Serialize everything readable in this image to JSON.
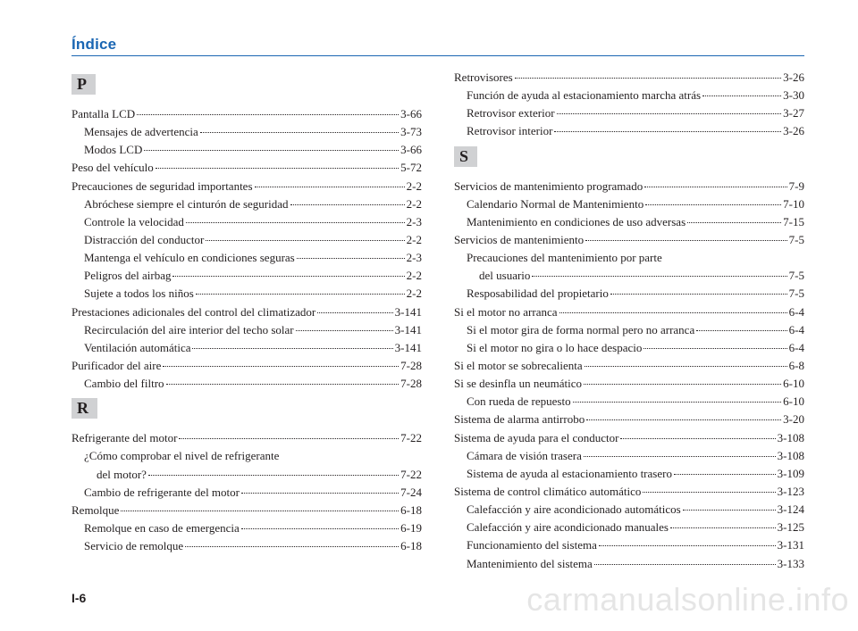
{
  "header": {
    "title": "Índice"
  },
  "pageNumber": "I-6",
  "watermark": "carmanualsonline.info",
  "leftColumn": {
    "sections": [
      {
        "letter": "P",
        "entries": [
          {
            "label": "Pantalla LCD",
            "page": "3-66",
            "indent": 0
          },
          {
            "label": "Mensajes de advertencia",
            "page": "3-73",
            "indent": 1
          },
          {
            "label": "Modos LCD",
            "page": "3-66",
            "indent": 1
          },
          {
            "label": "Peso del vehículo",
            "page": "5-72",
            "indent": 0
          },
          {
            "label": "Precauciones de seguridad importantes",
            "page": "2-2",
            "indent": 0
          },
          {
            "label": "Abróchese siempre el cinturón de seguridad",
            "page": "2-2",
            "indent": 1
          },
          {
            "label": "Controle la velocidad",
            "page": "2-3",
            "indent": 1
          },
          {
            "label": "Distracción del conductor",
            "page": "2-2",
            "indent": 1
          },
          {
            "label": "Mantenga el vehículo en condiciones seguras",
            "page": "2-3",
            "indent": 1
          },
          {
            "label": "Peligros del airbag",
            "page": "2-2",
            "indent": 1
          },
          {
            "label": "Sujete a todos los niños",
            "page": "2-2",
            "indent": 1
          },
          {
            "label": "Prestaciones adicionales del control del climatizador",
            "page": "3-141",
            "indent": 0,
            "wrap": true
          },
          {
            "label": "Recirculación del aire interior del techo solar",
            "page": "3-141",
            "indent": 1
          },
          {
            "label": "Ventilación automática",
            "page": "3-141",
            "indent": 1
          },
          {
            "label": "Purificador del aire",
            "page": "7-28",
            "indent": 0
          },
          {
            "label": "Cambio del filtro",
            "page": "7-28",
            "indent": 1
          }
        ]
      },
      {
        "letter": "R",
        "entries": [
          {
            "label": "Refrigerante del motor",
            "page": "7-22",
            "indent": 0
          },
          {
            "label_multiline": [
              "¿Cómo comprobar el nivel de refrigerante",
              "del motor?"
            ],
            "page": "7-22",
            "indent": 1
          },
          {
            "label": "Cambio de refrigerante del motor",
            "page": "7-24",
            "indent": 1
          },
          {
            "label": "Remolque",
            "page": "6-18",
            "indent": 0
          },
          {
            "label": "Remolque en caso de emergencia",
            "page": "6-19",
            "indent": 1
          },
          {
            "label": "Servicio de remolque",
            "page": "6-18",
            "indent": 1
          }
        ]
      }
    ]
  },
  "rightColumn": {
    "sections": [
      {
        "letter": null,
        "entries": [
          {
            "label": "Retrovisores",
            "page": "3-26",
            "indent": 0
          },
          {
            "label": "Función de ayuda al estacionamiento marcha atrás",
            "page": "3-30",
            "indent": 1
          },
          {
            "label": "Retrovisor exterior",
            "page": "3-27",
            "indent": 1
          },
          {
            "label": "Retrovisor interior",
            "page": "3-26",
            "indent": 1
          }
        ]
      },
      {
        "letter": "S",
        "entries": [
          {
            "label": "Servicios de mantenimiento programado",
            "page": "7-9",
            "indent": 0
          },
          {
            "label": "Calendario Normal de Mantenimiento",
            "page": "7-10",
            "indent": 1
          },
          {
            "label": "Mantenimiento en condiciones de uso adversas",
            "page": "7-15",
            "indent": 1
          },
          {
            "label": "Servicios de mantenimiento",
            "page": "7-5",
            "indent": 0
          },
          {
            "label_multiline": [
              "Precauciones del mantenimiento por parte",
              "del usuario"
            ],
            "page": "7-5",
            "indent": 1
          },
          {
            "label": "Resposabilidad del propietario",
            "page": "7-5",
            "indent": 1
          },
          {
            "label": "Si el motor no arranca",
            "page": "6-4",
            "indent": 0
          },
          {
            "label": "Si el motor gira de forma normal pero no arranca",
            "page": "6-4",
            "indent": 1
          },
          {
            "label": "Si el motor no gira o lo hace despacio",
            "page": "6-4",
            "indent": 1
          },
          {
            "label": "Si el motor se sobrecalienta",
            "page": "6-8",
            "indent": 0
          },
          {
            "label": "Si se desinfla un neumático",
            "page": "6-10",
            "indent": 0
          },
          {
            "label": "Con rueda de repuesto",
            "page": "6-10",
            "indent": 1
          },
          {
            "label": "Sistema de alarma antirrobo",
            "page": "3-20",
            "indent": 0
          },
          {
            "label": "Sistema de ayuda para el conductor",
            "page": "3-108",
            "indent": 0
          },
          {
            "label": "Cámara de visión trasera",
            "page": "3-108",
            "indent": 1
          },
          {
            "label": "Sistema de ayuda al estacionamiento trasero",
            "page": "3-109",
            "indent": 1
          },
          {
            "label": "Sistema de control climático automático",
            "page": "3-123",
            "indent": 0
          },
          {
            "label": "Calefacción y aire acondicionado automáticos",
            "page": "3-124",
            "indent": 1
          },
          {
            "label": "Calefacción y aire acondicionado manuales",
            "page": "3-125",
            "indent": 1
          },
          {
            "label": "Funcionamiento del sistema",
            "page": "3-131",
            "indent": 1
          },
          {
            "label": "Mantenimiento del sistema",
            "page": "3-133",
            "indent": 1
          }
        ]
      }
    ]
  }
}
